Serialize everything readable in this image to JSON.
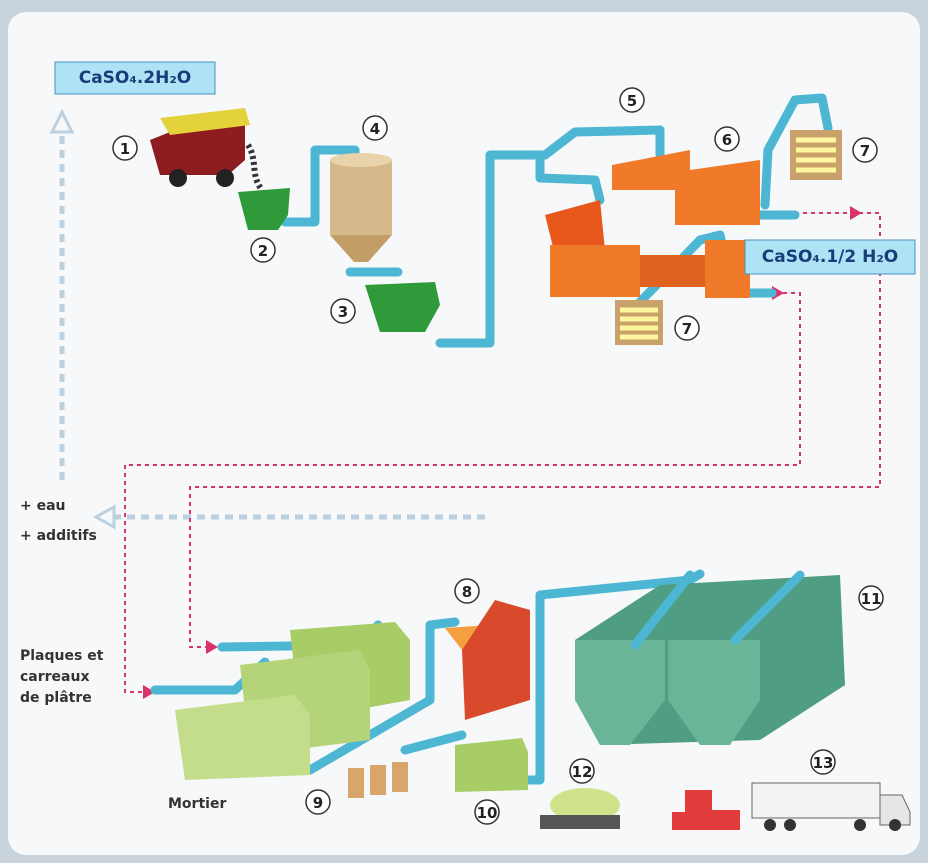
{
  "formulas": {
    "dihydrate": "CaSO₄.2H₂O",
    "hemihydrate": "CaSO₄.1/2 H₂O"
  },
  "steps": [
    "1",
    "2",
    "3",
    "4",
    "5",
    "6",
    "7",
    "7",
    "8",
    "9",
    "10",
    "11",
    "12",
    "13"
  ],
  "side_labels": {
    "water": "+ eau",
    "additives": "+ additifs",
    "boards": [
      "Plaques et",
      "carreaux",
      "de plâtre"
    ],
    "mortar": "Mortier"
  }
}
